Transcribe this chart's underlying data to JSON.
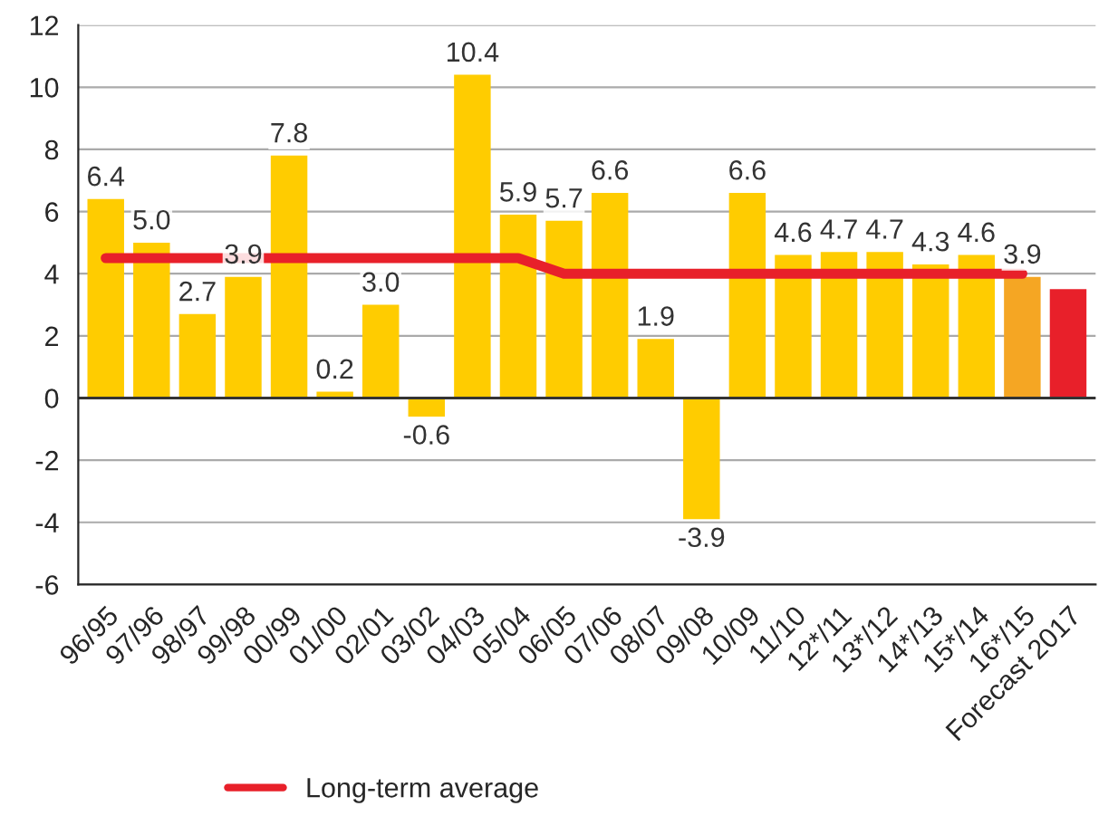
{
  "chart_data": {
    "type": "bar",
    "categories": [
      "96/95",
      "97/96",
      "98/97",
      "99/98",
      "00/99",
      "01/00",
      "02/01",
      "03/02",
      "04/03",
      "05/04",
      "06/05",
      "07/06",
      "08/07",
      "09/08",
      "10/09",
      "11/10",
      "12*/11",
      "13*/12",
      "14*/13",
      "15*/14",
      "16*/15",
      "Forecast 2017"
    ],
    "series": [
      {
        "values": [
          6.4,
          5.0,
          2.7,
          3.9,
          7.8,
          0.2,
          3.0,
          -0.6,
          10.4,
          5.9,
          5.7,
          6.6,
          1.9,
          -3.9,
          6.6,
          4.6,
          4.7,
          4.7,
          4.3,
          4.6,
          3.9,
          3.5
        ],
        "colors": [
          "#ffcc00",
          "#ffcc00",
          "#ffcc00",
          "#ffcc00",
          "#ffcc00",
          "#ffcc00",
          "#ffcc00",
          "#ffcc00",
          "#ffcc00",
          "#ffcc00",
          "#ffcc00",
          "#ffcc00",
          "#ffcc00",
          "#ffcc00",
          "#ffcc00",
          "#ffcc00",
          "#ffcc00",
          "#ffcc00",
          "#ffcc00",
          "#ffcc00",
          "#f5a623",
          "#e8202a"
        ],
        "value_labels": [
          "6.4",
          "5.0",
          "2.7",
          "3.9",
          "7.8",
          "0.2",
          "3.0",
          "-0.6",
          "10.4",
          "5.9",
          "5.7",
          "6.6",
          "1.9",
          "-3.9",
          "6.6",
          "4.6",
          "4.7",
          "4.7",
          "4.3",
          "4.6",
          "3.9",
          null
        ]
      },
      {
        "type": "line",
        "name": "Long-term average",
        "color": "#e8202a",
        "values": [
          4.5,
          4.5,
          4.5,
          4.5,
          4.5,
          4.5,
          4.5,
          4.5,
          4.5,
          4.5,
          4.0,
          4.0,
          4.0,
          4.0,
          4.0,
          4.0,
          4.0,
          4.0,
          4.0,
          4.0,
          4.0,
          null
        ]
      }
    ],
    "ylim": [
      -6,
      12
    ],
    "yticks": [
      -6,
      -4,
      -2,
      0,
      2,
      4,
      6,
      8,
      10,
      12
    ],
    "grid": "y",
    "legend": "bottom",
    "marker": "none",
    "line_style": "solid"
  }
}
